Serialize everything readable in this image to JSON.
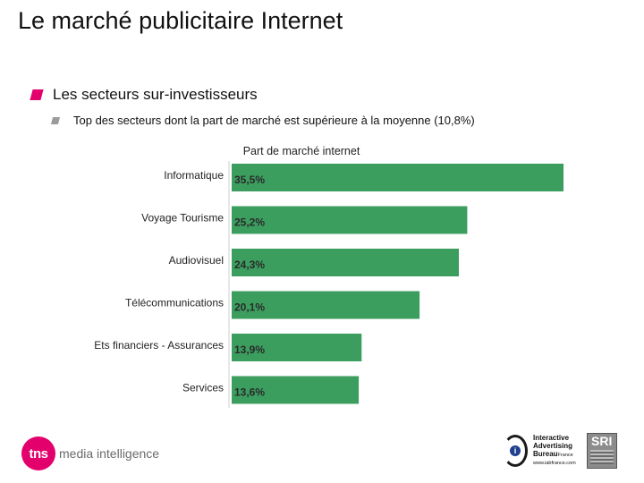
{
  "page": {
    "title": "Le marché publicitaire Internet",
    "bullet_main": "Les secteurs sur-investisseurs",
    "bullet_sub": "Top des secteurs dont la part de marché est supérieure à la moyenne (10,8%)"
  },
  "colors": {
    "bar": "#3b9e5f",
    "accent": "#e3006d"
  },
  "chart_data": {
    "type": "bar",
    "orientation": "horizontal",
    "title": "Part de marché internet",
    "categories": [
      "Informatique",
      "Voyage Tourisme",
      "Audiovisuel",
      "Télécommunications",
      "Ets financiers - Assurances",
      "Services"
    ],
    "values": [
      35.5,
      25.2,
      24.3,
      20.1,
      13.9,
      13.6
    ],
    "value_labels": [
      "35,5%",
      "25,2%",
      "24,3%",
      "20,1%",
      "13,9%",
      "13,6%"
    ],
    "xlim": [
      0,
      35.5
    ],
    "xlabel": "",
    "ylabel": ""
  },
  "footer": {
    "tns_logo": "tns",
    "tns_tagline": "media intelligence",
    "iab_logo": "i",
    "iab_line1": "Interactive",
    "iab_line2": "Advertising",
    "iab_line3": "Bureau",
    "iab_france": "France",
    "iab_url": "www.iabfrance.com",
    "sri_logo": "SRI"
  }
}
